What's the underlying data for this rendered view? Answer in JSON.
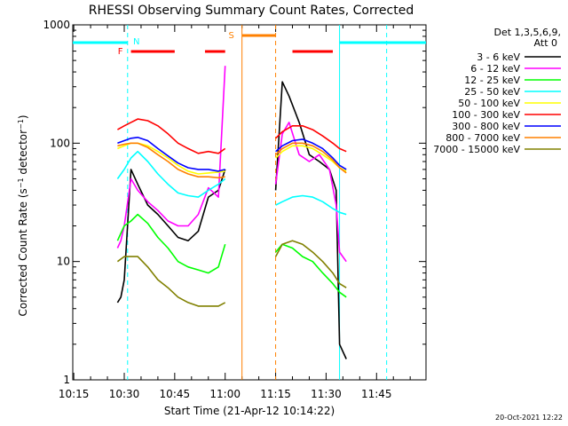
{
  "chart_data": {
    "type": "line",
    "title": "RHESSI Observing Summary Count Rates, Corrected",
    "xlabel": "Start Time (21-Apr-12 10:14:22)",
    "ylabel": "Corrected Count Rate (s⁻¹ detector⁻¹)",
    "yscale": "log",
    "ylim": [
      1,
      1000
    ],
    "xlim_minutes": [
      10.245,
      11.995
    ],
    "x_ticks": [
      "10:15",
      "10:30",
      "10:45",
      "11:00",
      "11:15",
      "11:30",
      "11:45"
    ],
    "y_ticks": [
      "1",
      "10",
      "100",
      "1000"
    ],
    "grid": false,
    "legend_position": "top-right",
    "legend_header": [
      "Det 1,3,5,6,9,",
      "Att 0"
    ],
    "timestamp": "20-Oct-2021 12:22",
    "flags": [
      {
        "label": "N",
        "color": "#00ffff",
        "note": "night (cyan)"
      },
      {
        "label": "F",
        "color": "#ff0000",
        "note": "flare flag (red)"
      },
      {
        "label": "S",
        "color": "#ff8000",
        "note": "SAA (orange)"
      }
    ],
    "series": [
      {
        "name": "3 - 6 keV",
        "color": "#000000",
        "x": [
          "10:28",
          "10:29",
          "10:30",
          "10:32",
          "10:34",
          "10:37",
          "10:40",
          "10:43",
          "10:46",
          "10:49",
          "10:52",
          "10:55",
          "10:58",
          "11:00",
          "11:15",
          "11:17",
          "11:19",
          "11:22",
          "11:25",
          "11:28",
          "11:31",
          "11:33",
          "11:34",
          "11:36"
        ],
        "y": [
          4.5,
          5,
          7,
          60,
          45,
          30,
          25,
          20,
          16,
          15,
          18,
          35,
          40,
          60,
          40,
          330,
          250,
          150,
          80,
          70,
          60,
          40,
          2,
          1.5
        ]
      },
      {
        "name": "6 - 12 keV",
        "color": "#ff00ff",
        "x": [
          "10:28",
          "10:29",
          "10:30",
          "10:32",
          "10:34",
          "10:37",
          "10:40",
          "10:43",
          "10:46",
          "10:49",
          "10:52",
          "10:55",
          "10:58",
          "11:00",
          "11:15",
          "11:17",
          "11:19",
          "11:22",
          "11:25",
          "11:28",
          "11:31",
          "11:33",
          "11:34",
          "11:36"
        ],
        "y": [
          13,
          15,
          20,
          50,
          40,
          32,
          27,
          22,
          20,
          20,
          25,
          42,
          35,
          450,
          45,
          120,
          150,
          80,
          70,
          80,
          60,
          30,
          12,
          10
        ]
      },
      {
        "name": "12 - 25 keV",
        "color": "#00ff00",
        "x": [
          "10:28",
          "10:30",
          "10:32",
          "10:34",
          "10:37",
          "10:40",
          "10:43",
          "10:46",
          "10:49",
          "10:52",
          "10:55",
          "10:58",
          "11:00",
          "11:15",
          "11:17",
          "11:20",
          "11:23",
          "11:26",
          "11:29",
          "11:32",
          "11:34",
          "11:36"
        ],
        "y": [
          15,
          20,
          22,
          25,
          21,
          16,
          13,
          10,
          9,
          8.5,
          8,
          9,
          14,
          12,
          14,
          13,
          11,
          10,
          8,
          6.5,
          5.5,
          5
        ]
      },
      {
        "name": "25 - 50 keV",
        "color": "#00ffff",
        "x": [
          "10:28",
          "10:30",
          "10:32",
          "10:34",
          "10:37",
          "10:40",
          "10:43",
          "10:46",
          "10:49",
          "10:52",
          "10:55",
          "10:58",
          "11:00",
          "11:15",
          "11:17",
          "11:20",
          "11:23",
          "11:26",
          "11:29",
          "11:32",
          "11:34",
          "11:36"
        ],
        "y": [
          50,
          60,
          75,
          85,
          70,
          55,
          45,
          38,
          36,
          35,
          40,
          45,
          50,
          30,
          32,
          35,
          36,
          35,
          32,
          28,
          26,
          25
        ]
      },
      {
        "name": "50 - 100 keV",
        "color": "#ffff00",
        "x": [
          "10:28",
          "10:30",
          "10:32",
          "10:34",
          "10:37",
          "10:40",
          "10:43",
          "10:46",
          "10:49",
          "10:52",
          "10:55",
          "10:58",
          "11:00",
          "11:15",
          "11:17",
          "11:20",
          "11:23",
          "11:26",
          "11:29",
          "11:32",
          "11:34",
          "11:36"
        ],
        "y": [
          90,
          95,
          100,
          100,
          95,
          85,
          75,
          65,
          58,
          55,
          56,
          57,
          58,
          75,
          85,
          95,
          95,
          90,
          80,
          70,
          62,
          58
        ]
      },
      {
        "name": "100 - 300 keV",
        "color": "#ff0000",
        "x": [
          "10:28",
          "10:30",
          "10:32",
          "10:34",
          "10:37",
          "10:40",
          "10:43",
          "10:46",
          "10:49",
          "10:52",
          "10:55",
          "10:58",
          "11:00",
          "11:15",
          "11:17",
          "11:20",
          "11:23",
          "11:26",
          "11:29",
          "11:32",
          "11:34",
          "11:36"
        ],
        "y": [
          130,
          140,
          150,
          160,
          155,
          140,
          120,
          100,
          90,
          82,
          85,
          82,
          90,
          110,
          125,
          140,
          140,
          130,
          115,
          100,
          90,
          85
        ]
      },
      {
        "name": "300 - 800 keV",
        "color": "#0000ff",
        "x": [
          "10:28",
          "10:30",
          "10:32",
          "10:34",
          "10:37",
          "10:40",
          "10:43",
          "10:46",
          "10:49",
          "10:52",
          "10:55",
          "10:58",
          "11:00",
          "11:15",
          "11:17",
          "11:20",
          "11:23",
          "11:26",
          "11:29",
          "11:32",
          "11:34",
          "11:36"
        ],
        "y": [
          100,
          105,
          110,
          112,
          105,
          90,
          78,
          68,
          62,
          60,
          60,
          58,
          60,
          85,
          95,
          105,
          108,
          100,
          90,
          75,
          65,
          60
        ]
      },
      {
        "name": "800 - 7000 keV",
        "color": "#ff8000",
        "x": [
          "10:28",
          "10:30",
          "10:32",
          "10:34",
          "10:37",
          "10:40",
          "10:43",
          "10:46",
          "10:49",
          "10:52",
          "10:55",
          "10:58",
          "11:00",
          "11:15",
          "11:17",
          "11:20",
          "11:23",
          "11:26",
          "11:29",
          "11:32",
          "11:34",
          "11:36"
        ],
        "y": [
          95,
          98,
          100,
          100,
          92,
          80,
          70,
          60,
          55,
          52,
          52,
          51,
          52,
          80,
          90,
          100,
          100,
          95,
          85,
          72,
          62,
          56
        ]
      },
      {
        "name": "7000 - 15000 keV",
        "color": "#808000",
        "x": [
          "10:28",
          "10:30",
          "10:32",
          "10:34",
          "10:37",
          "10:40",
          "10:43",
          "10:46",
          "10:49",
          "10:52",
          "10:55",
          "10:58",
          "11:00",
          "11:15",
          "11:17",
          "11:20",
          "11:23",
          "11:26",
          "11:29",
          "11:32",
          "11:34",
          "11:36"
        ],
        "y": [
          10,
          11,
          11,
          11,
          9,
          7,
          6,
          5,
          4.5,
          4.2,
          4.2,
          4.2,
          4.5,
          11,
          14,
          15,
          14,
          12,
          10,
          8,
          6.5,
          6
        ]
      }
    ]
  }
}
